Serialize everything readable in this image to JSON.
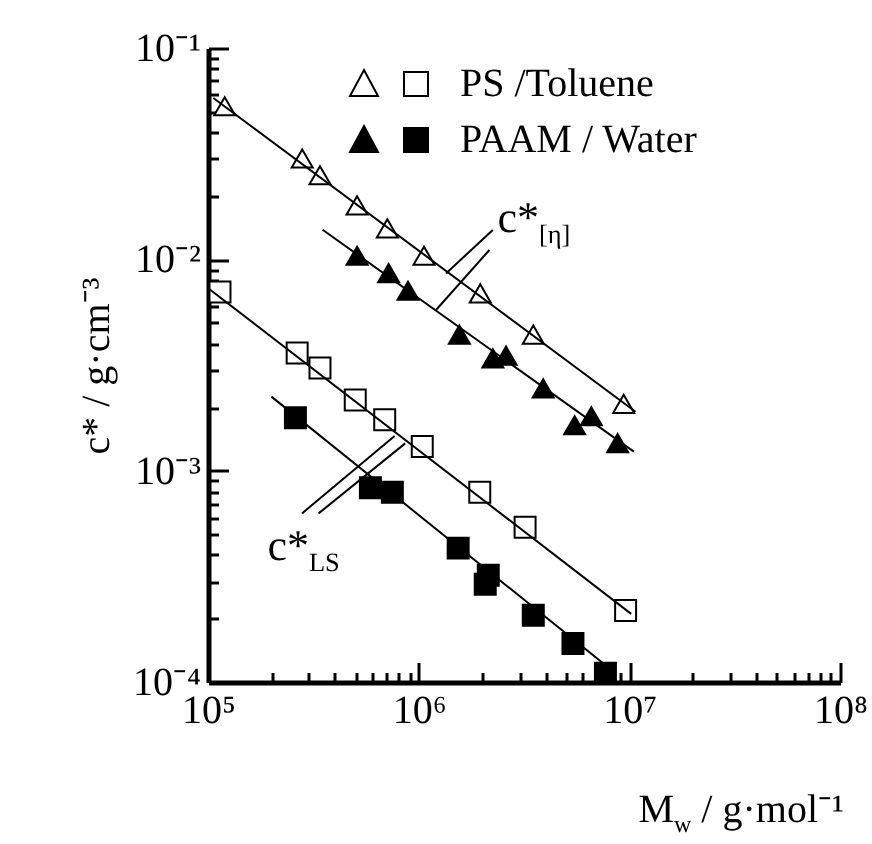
{
  "chart_data": {
    "type": "scatter",
    "xlabel": "M$_{w}$ / g·mol⁻¹",
    "ylabel": "c* / g·cm⁻³",
    "log": "xy",
    "legend": "top right",
    "grid": false,
    "xlim": [
      100000,
      100000000
    ],
    "ylim": [
      0.0001,
      0.1
    ],
    "xticks": [
      {
        "value": 100000,
        "label": "10⁵"
      },
      {
        "value": 200000,
        "label": null
      },
      {
        "value": 300000,
        "label": null
      },
      {
        "value": 400000,
        "label": null
      },
      {
        "value": 500000,
        "label": null
      },
      {
        "value": 600000,
        "label": null
      },
      {
        "value": 700000,
        "label": null
      },
      {
        "value": 800000,
        "label": null
      },
      {
        "value": 900000,
        "label": null
      },
      {
        "value": 1000000,
        "label": "10⁶"
      },
      {
        "value": 2000000,
        "label": null
      },
      {
        "value": 3000000,
        "label": null
      },
      {
        "value": 4000000,
        "label": null
      },
      {
        "value": 5000000,
        "label": null
      },
      {
        "value": 6000000,
        "label": null
      },
      {
        "value": 7000000,
        "label": null
      },
      {
        "value": 8000000,
        "label": null
      },
      {
        "value": 9000000,
        "label": null
      },
      {
        "value": 10000000,
        "label": "10⁷"
      },
      {
        "value": 20000000,
        "label": null
      },
      {
        "value": 30000000,
        "label": null
      },
      {
        "value": 40000000,
        "label": null
      },
      {
        "value": 50000000,
        "label": null
      },
      {
        "value": 60000000,
        "label": null
      },
      {
        "value": 70000000,
        "label": null
      },
      {
        "value": 80000000,
        "label": null
      },
      {
        "value": 90000000,
        "label": null
      },
      {
        "value": 100000000,
        "label": "10⁸"
      }
    ],
    "yticks": [
      {
        "value": 0.0001,
        "label": "10⁻⁴"
      },
      {
        "value": 0.0002,
        "label": null
      },
      {
        "value": 0.0003,
        "label": null
      },
      {
        "value": 0.0004,
        "label": null
      },
      {
        "value": 0.0005,
        "label": null
      },
      {
        "value": 0.0006,
        "label": null
      },
      {
        "value": 0.0007,
        "label": null
      },
      {
        "value": 0.0008,
        "label": null
      },
      {
        "value": 0.0009,
        "label": null
      },
      {
        "value": 0.001,
        "label": "10⁻³"
      },
      {
        "value": 0.002,
        "label": null
      },
      {
        "value": 0.003,
        "label": null
      },
      {
        "value": 0.004,
        "label": null
      },
      {
        "value": 0.005,
        "label": null
      },
      {
        "value": 0.006,
        "label": null
      },
      {
        "value": 0.007,
        "label": null
      },
      {
        "value": 0.008,
        "label": null
      },
      {
        "value": 0.009,
        "label": null
      },
      {
        "value": 0.01,
        "label": "10⁻²"
      },
      {
        "value": 0.02,
        "label": null
      },
      {
        "value": 0.03,
        "label": null
      },
      {
        "value": 0.04,
        "label": null
      },
      {
        "value": 0.05,
        "label": null
      },
      {
        "value": 0.06,
        "label": null
      },
      {
        "value": 0.07,
        "label": null
      },
      {
        "value": 0.08,
        "label": null
      },
      {
        "value": 0.09,
        "label": null
      },
      {
        "value": 0.1,
        "label": "10⁻¹"
      }
    ],
    "annotations": [
      {
        "text": "c*$_{[η]}$",
        "x": 1210000,
        "y": 0.0057
      },
      {
        "text": "c*$_{LS}$",
        "x": 810000,
        "y": 0.0014
      }
    ],
    "series": [
      {
        "marker": "triangle",
        "color": "#ffffff",
        "x": [
          120000,
          280000,
          340000,
          510000,
          710000,
          1060000,
          1960000,
          3500000,
          9400000
        ],
        "values": [
          0.053,
          0.03,
          0.025,
          0.018,
          0.014,
          0.0104,
          0.0069,
          0.0044,
          0.00207
        ]
      },
      {
        "name": "PS /Toluene",
        "marker": "square",
        "color": "#ffffff",
        "x": [
          114000,
          265000,
          340000,
          500000,
          690000,
          1040000,
          1950000,
          3200000,
          9600000
        ],
        "values": [
          0.007,
          0.0036,
          0.00306,
          0.00216,
          0.00174,
          0.0013,
          0.00079,
          0.00054,
          0.000218
        ]
      },
      {
        "marker": "triangle",
        "color": "#000000",
        "x": [
          510000,
          720000,
          890000,
          1560000,
          2250000,
          2600000,
          3900000,
          5500000,
          6600000,
          8800000
        ],
        "values": [
          0.0104,
          0.0086,
          0.0071,
          0.0044,
          0.0034,
          0.0035,
          0.00245,
          0.00164,
          0.00181,
          0.00135
        ]
      },
      {
        "name": "PAAM / Water",
        "marker": "square",
        "color": "#000000",
        "x": [
          260000,
          590000,
          750000,
          1540000,
          2070000,
          2140000,
          3500000,
          5400000,
          7700000
        ],
        "values": [
          0.00178,
          0.00083,
          0.00079,
          0.00043,
          0.00029,
          0.00032,
          0.000207,
          0.000152,
          0.00011
        ]
      },
      {
        "type": "line",
        "marker": "none",
        "line_style": "solid",
        "color": "#000000",
        "x": [
          106000,
          10700000
        ],
        "values": [
          0.058,
          0.0019
        ]
      },
      {
        "type": "line",
        "marker": "none",
        "line_style": "solid",
        "color": "#000000",
        "x": [
          350000,
          10500000
        ],
        "values": [
          0.0138,
          0.00123
        ]
      },
      {
        "type": "line",
        "marker": "none",
        "line_style": "solid",
        "color": "#000000",
        "x": [
          102000,
          10200000
        ],
        "values": [
          0.0072,
          0.00021
        ]
      },
      {
        "type": "line",
        "marker": "none",
        "line_style": "solid",
        "color": "#000000",
        "x": [
          200000,
          8600000
        ],
        "values": [
          0.00224,
          0.00011
        ]
      }
    ]
  }
}
